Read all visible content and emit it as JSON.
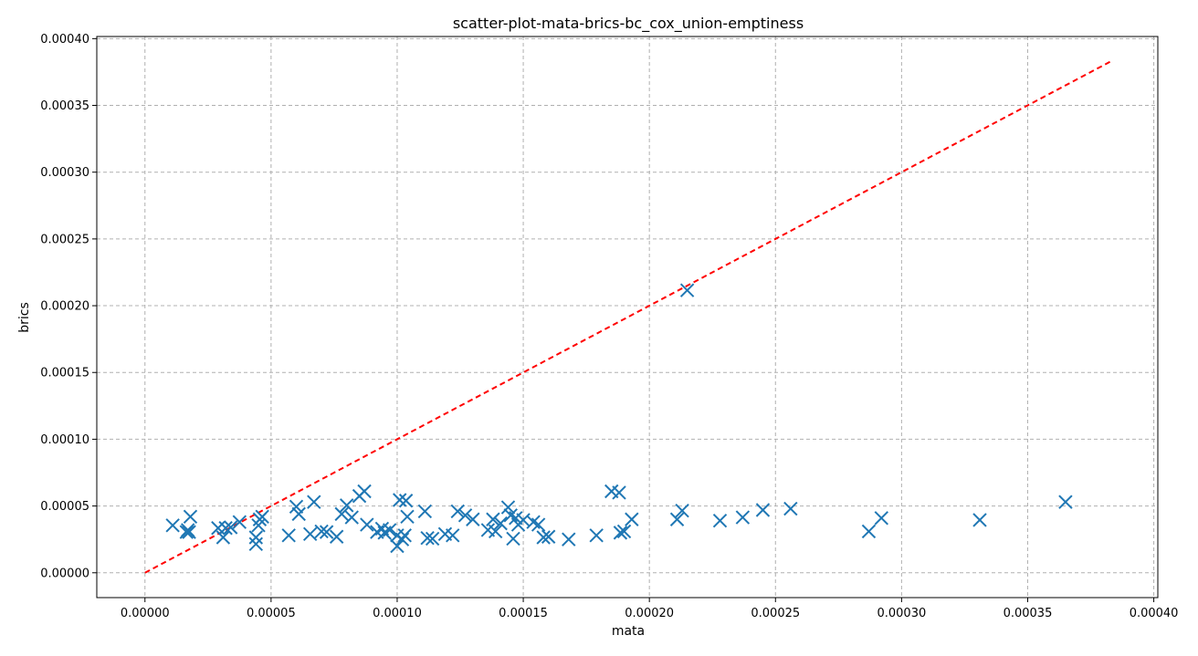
{
  "chart_data": {
    "type": "scatter",
    "title": "scatter-plot-mata-brics-bc_cox_union-emptiness",
    "xlabel": "mata",
    "ylabel": "brics",
    "xlim": [
      -1.91e-05,
      0.0004016
    ],
    "ylim": [
      -1.86e-05,
      0.0004016
    ],
    "x_ticks": [
      "0.00000",
      "0.00005",
      "0.00010",
      "0.00015",
      "0.00020",
      "0.00025",
      "0.00030",
      "0.00035",
      "0.00040"
    ],
    "y_ticks": [
      "0.00000",
      "0.00005",
      "0.00010",
      "0.00015",
      "0.00020",
      "0.00025",
      "0.00030",
      "0.00035",
      "0.00040"
    ],
    "grid": true,
    "marker": "x",
    "series_color": "#1f77b4",
    "reference_line": {
      "style": "dashed",
      "color": "#ff0000",
      "x": [
        0,
        0.000383
      ],
      "y": [
        0,
        0.000383
      ]
    },
    "points": [
      [
        1.1e-05,
        3.55e-05
      ],
      [
        1.65e-05,
        3.05e-05
      ],
      [
        1.7e-05,
        3.2e-05
      ],
      [
        1.75e-05,
        3.05e-05
      ],
      [
        1.8e-05,
        4.2e-05
      ],
      [
        2.9e-05,
        3.35e-05
      ],
      [
        3.1e-05,
        2.65e-05
      ],
      [
        3.2e-05,
        3.35e-05
      ],
      [
        3.4e-05,
        3.4e-05
      ],
      [
        3.75e-05,
        3.8e-05
      ],
      [
        4.4e-05,
        2.65e-05
      ],
      [
        4.4e-05,
        2.15e-05
      ],
      [
        4.5e-05,
        3.55e-05
      ],
      [
        4.55e-05,
        4e-05
      ],
      [
        4.65e-05,
        4.2e-05
      ],
      [
        5.7e-05,
        2.8e-05
      ],
      [
        6e-05,
        4.95e-05
      ],
      [
        6.1e-05,
        4.4e-05
      ],
      [
        6.55e-05,
        2.9e-05
      ],
      [
        6.7e-05,
        5.3e-05
      ],
      [
        7e-05,
        3.1e-05
      ],
      [
        7.2e-05,
        3.05e-05
      ],
      [
        7.6e-05,
        2.7e-05
      ],
      [
        7.8e-05,
        4.4e-05
      ],
      [
        8e-05,
        5.05e-05
      ],
      [
        8.2e-05,
        4.15e-05
      ],
      [
        8.5e-05,
        5.75e-05
      ],
      [
        8.7e-05,
        6.1e-05
      ],
      [
        8.8e-05,
        3.6e-05
      ],
      [
        9.2e-05,
        3.05e-05
      ],
      [
        9.4e-05,
        3.3e-05
      ],
      [
        9.5e-05,
        3e-05
      ],
      [
        9.7e-05,
        3.2e-05
      ],
      [
        0.0001,
        2.8e-05
      ],
      [
        0.0001,
        2e-05
      ],
      [
        0.000101,
        5.45e-05
      ],
      [
        0.000102,
        2.5e-05
      ],
      [
        0.000103,
        2.8e-05
      ],
      [
        0.0001035,
        5.4e-05
      ],
      [
        0.000104,
        4.2e-05
      ],
      [
        0.000111,
        4.6e-05
      ],
      [
        0.000112,
        2.6e-05
      ],
      [
        0.000114,
        2.55e-05
      ],
      [
        0.000119,
        2.9e-05
      ],
      [
        0.000122,
        2.8e-05
      ],
      [
        0.000124,
        4.6e-05
      ],
      [
        0.000127,
        4.3e-05
      ],
      [
        0.00013,
        4e-05
      ],
      [
        0.000136,
        3.2e-05
      ],
      [
        0.000138,
        4e-05
      ],
      [
        0.000139,
        3.1e-05
      ],
      [
        0.000141,
        3.7e-05
      ],
      [
        0.000144,
        4.9e-05
      ],
      [
        0.000145,
        4.3e-05
      ],
      [
        0.000146,
        2.55e-05
      ],
      [
        0.000147,
        4.1e-05
      ],
      [
        0.000148,
        3.6e-05
      ],
      [
        0.00015,
        3.95e-05
      ],
      [
        0.000154,
        3.8e-05
      ],
      [
        0.000156,
        3.6e-05
      ],
      [
        0.000158,
        2.65e-05
      ],
      [
        0.00016,
        2.7e-05
      ],
      [
        0.000168,
        2.5e-05
      ],
      [
        0.000179,
        2.8e-05
      ],
      [
        0.000185,
        6.1e-05
      ],
      [
        0.000188,
        6e-05
      ],
      [
        0.0001885,
        3e-05
      ],
      [
        0.00019,
        3.1e-05
      ],
      [
        0.000193,
        4e-05
      ],
      [
        0.000211,
        4e-05
      ],
      [
        0.000213,
        4.65e-05
      ],
      [
        0.000215,
        0.0002115
      ],
      [
        0.000228,
        3.9e-05
      ],
      [
        0.000237,
        4.15e-05
      ],
      [
        0.000245,
        4.7e-05
      ],
      [
        0.000256,
        4.8e-05
      ],
      [
        0.000287,
        3.1e-05
      ],
      [
        0.000292,
        4.1e-05
      ],
      [
        0.000331,
        3.95e-05
      ],
      [
        0.000365,
        5.3e-05
      ]
    ]
  }
}
